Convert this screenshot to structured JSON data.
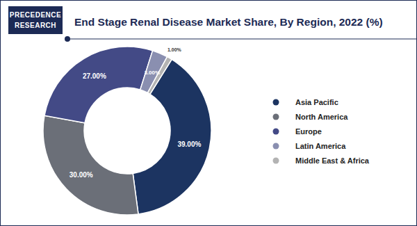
{
  "chart_data": {
    "type": "donut",
    "title": "End Stage Renal Disease Market Share, By Region, 2022 (%)",
    "annotations": [
      "PRECEDENCE",
      "RESEARCH"
    ],
    "categories": [
      "Asia Pacific",
      "North America",
      "Europe",
      "Latin America",
      "Middle East & Africa"
    ],
    "values": [
      39,
      30,
      27,
      3,
      1
    ],
    "value_labels": [
      "39.00%",
      "30.00%",
      "27.00%",
      "3.00%",
      "1.00%"
    ],
    "colors": [
      "#1c3461",
      "#6b6f78",
      "#434a86",
      "#8a8fb0",
      "#b3b3b3"
    ],
    "data_labels": true,
    "legend": "right"
  }
}
